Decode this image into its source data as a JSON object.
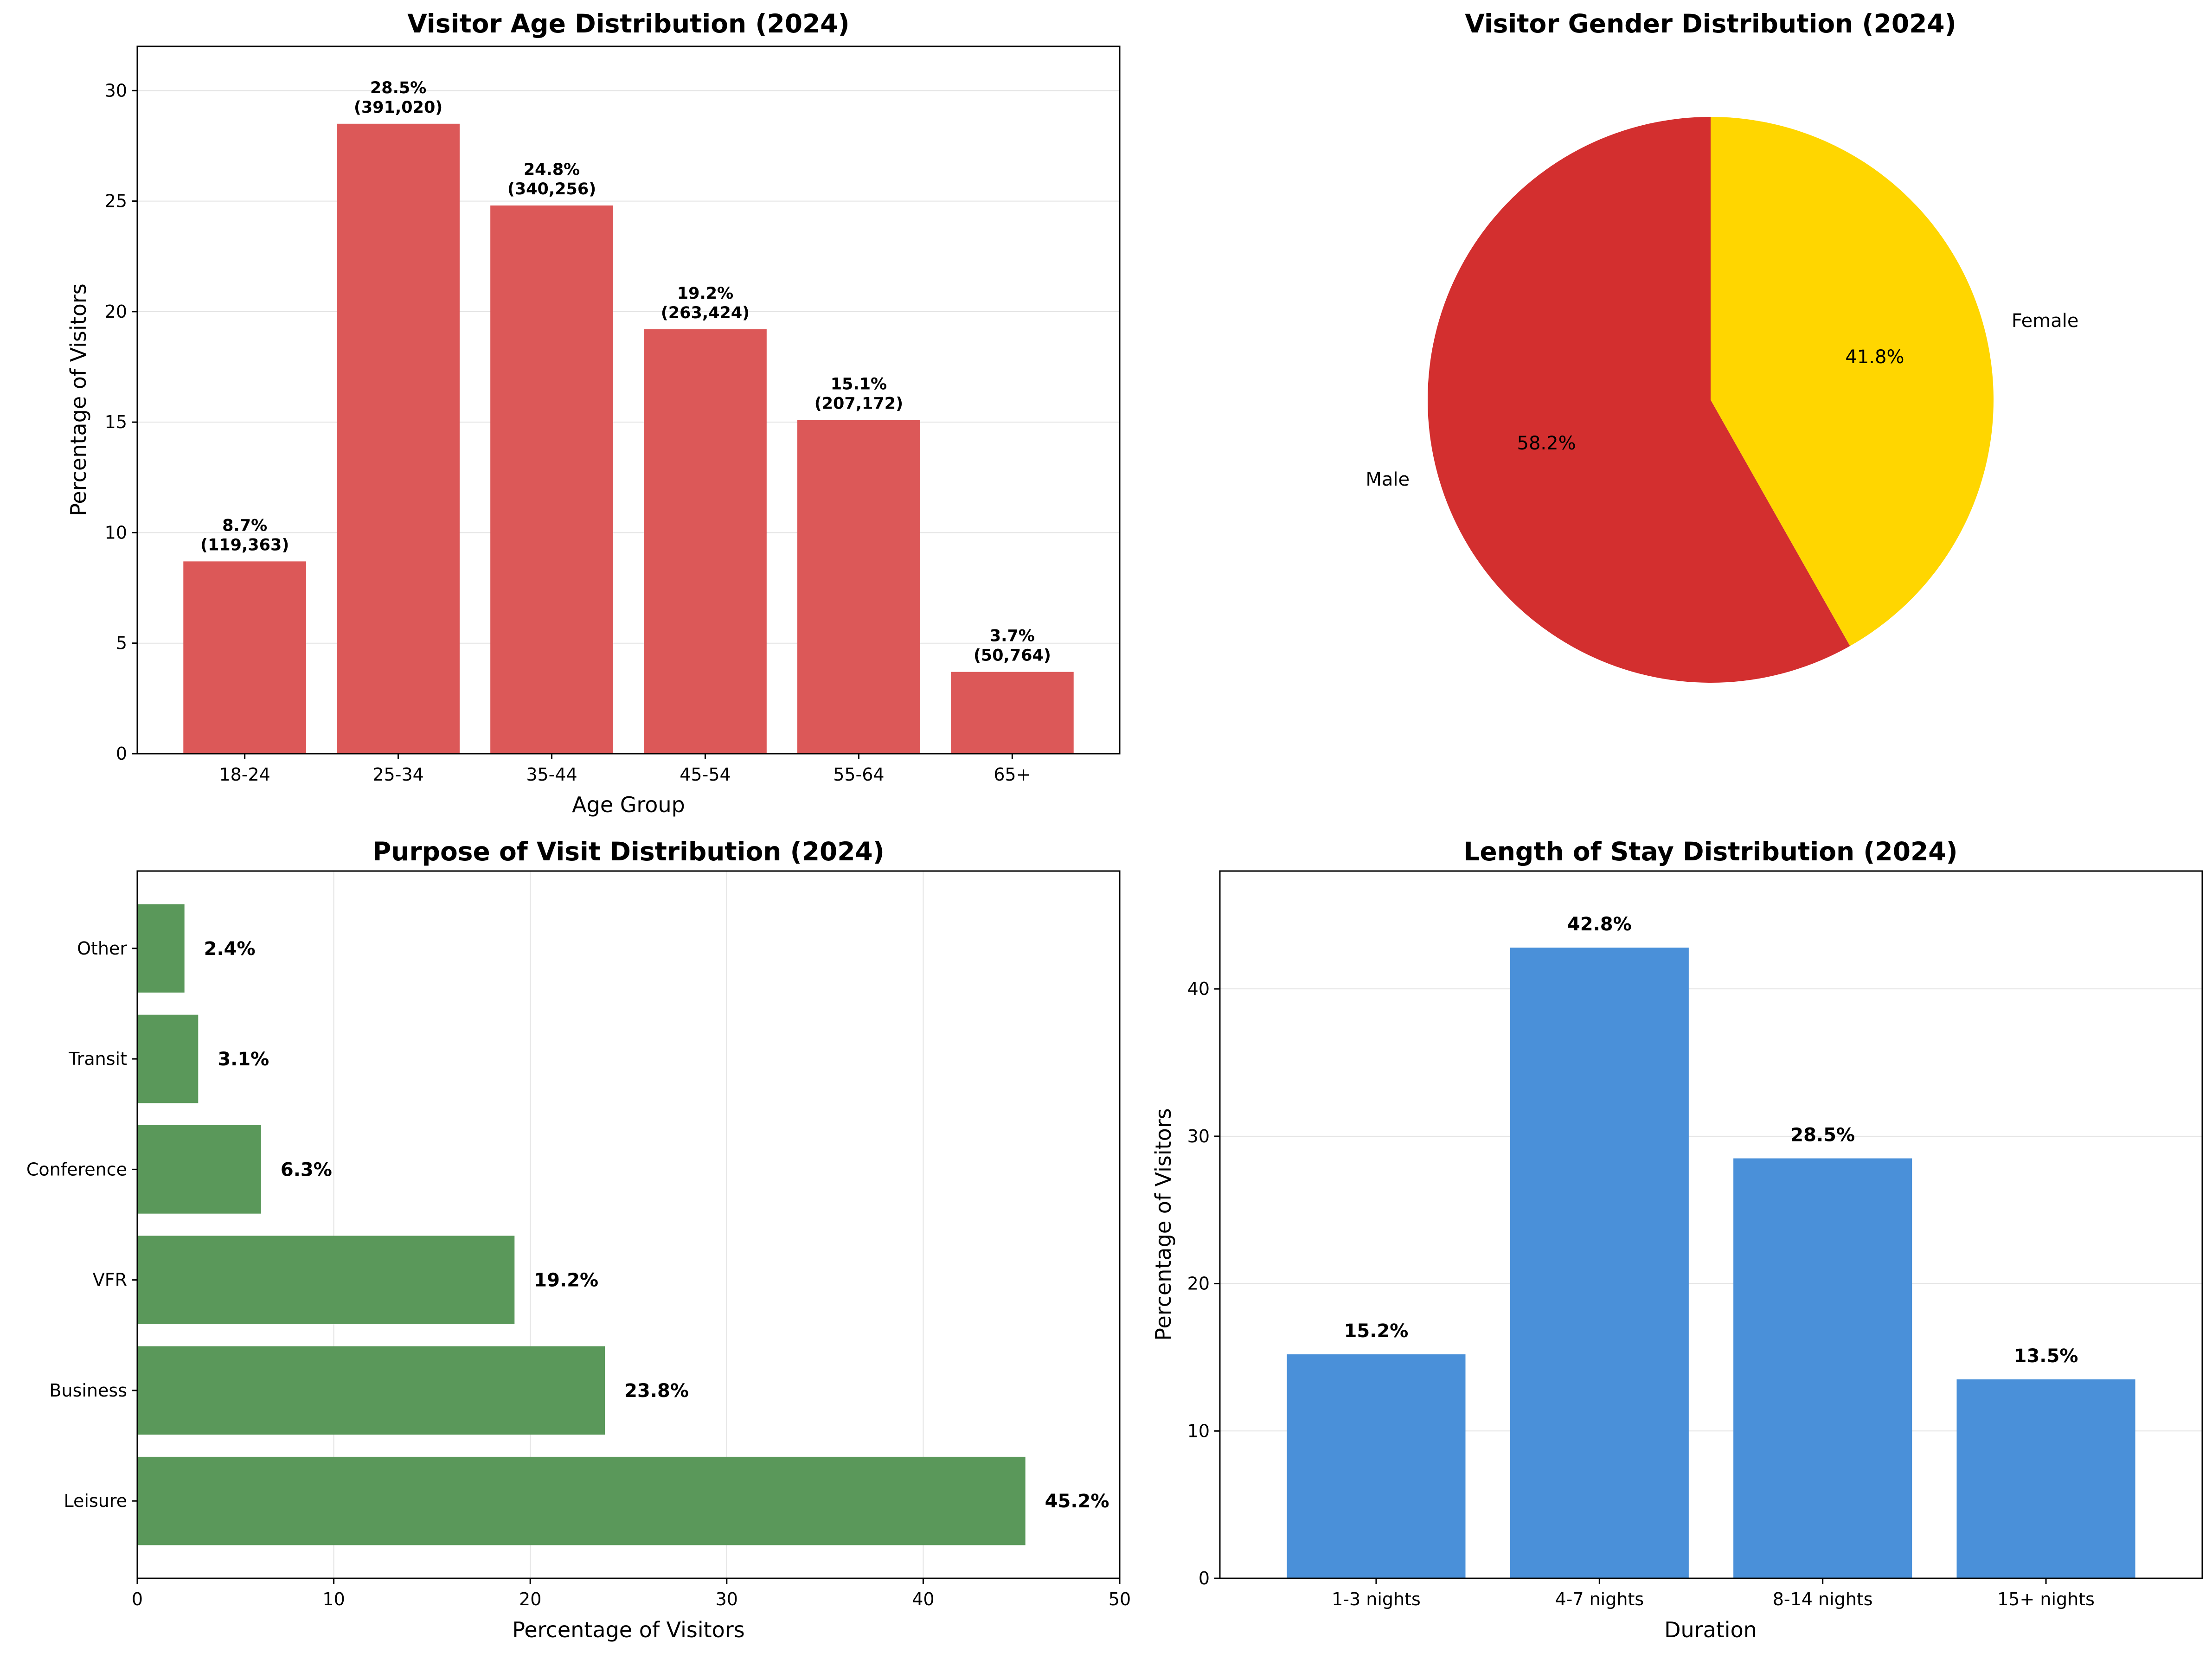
{
  "chart_data": [
    {
      "type": "bar",
      "title": "Visitor Age Distribution (2024)",
      "xlabel": "Age Group",
      "ylabel": "Percentage of Visitors",
      "categories": [
        "18-24",
        "25-34",
        "35-44",
        "45-54",
        "55-64",
        "65+"
      ],
      "values": [
        8.7,
        28.5,
        24.8,
        19.2,
        15.1,
        3.7
      ],
      "labels_pct": [
        "8.7%",
        "28.5%",
        "24.8%",
        "19.2%",
        "15.1%",
        "3.7%"
      ],
      "labels_count": [
        "(119,363)",
        "(391,020)",
        "(340,256)",
        "(263,424)",
        "(207,172)",
        "(50,764)"
      ],
      "ylim": [
        0,
        32
      ],
      "yticks": [
        0,
        5,
        10,
        15,
        20,
        25,
        30
      ],
      "grid": "y",
      "color": "#dc5858"
    },
    {
      "type": "pie",
      "title": "Visitor Gender Distribution (2024)",
      "categories": [
        "Male",
        "Female"
      ],
      "values": [
        58.2,
        41.8
      ],
      "pct_labels": [
        "58.2%",
        "41.8%"
      ],
      "colors": [
        "#d32f2f",
        "#ffd600"
      ],
      "start_angle_deg": 90
    },
    {
      "type": "bar",
      "orientation": "horizontal",
      "title": "Purpose of Visit Distribution (2024)",
      "xlabel": "Percentage of Visitors",
      "ylabel": "",
      "categories": [
        "Leisure",
        "Business",
        "VFR",
        "Conference",
        "Transit",
        "Other"
      ],
      "values": [
        45.2,
        23.8,
        19.2,
        6.3,
        3.1,
        2.4
      ],
      "labels": [
        "45.2%",
        "23.8%",
        "19.2%",
        "6.3%",
        "3.1%",
        "2.4%"
      ],
      "xlim": [
        0,
        50
      ],
      "xticks": [
        0,
        10,
        20,
        30,
        40,
        50
      ],
      "grid": "x",
      "color": "#5a985a"
    },
    {
      "type": "bar",
      "title": "Length of Stay Distribution (2024)",
      "xlabel": "Duration",
      "ylabel": "Percentage of Visitors",
      "categories": [
        "1-3 nights",
        "4-7 nights",
        "8-14 nights",
        "15+ nights"
      ],
      "values": [
        15.2,
        42.8,
        28.5,
        13.5
      ],
      "labels": [
        "15.2%",
        "42.8%",
        "28.5%",
        "13.5%"
      ],
      "ylim": [
        0,
        48
      ],
      "yticks": [
        0,
        10,
        20,
        30,
        40
      ],
      "grid": "y",
      "color": "#4a90d9"
    }
  ]
}
